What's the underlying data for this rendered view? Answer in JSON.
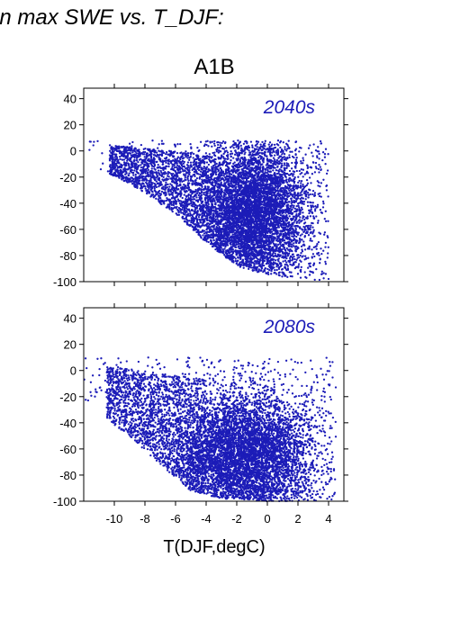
{
  "heading": "in max SWE vs. T_DJF:",
  "scenario": "A1B",
  "xlabel": "T(DJF,degC)",
  "colors": {
    "points": "#1c1cb8",
    "panel_label": "#1c1cb8",
    "axis": "#000000",
    "background": "#ffffff"
  },
  "chart_data": [
    {
      "type": "scatter",
      "title": "2040s",
      "xlim": [
        -12,
        5
      ],
      "ylim": [
        -100,
        48
      ],
      "x_ticks": [
        -10,
        -8,
        -6,
        -4,
        -2,
        0,
        2,
        4
      ],
      "y_ticks": [
        -100,
        -80,
        -60,
        -40,
        -20,
        0,
        20,
        40
      ],
      "x_tick_labels_shown": false,
      "grid": false,
      "series": [
        {
          "color": "#1c1cb8",
          "points_estimated": 8000,
          "x_range": [
            -11.8,
            4
          ],
          "y_range": [
            -100,
            8
          ],
          "density_core_x": [
            -3,
            1
          ],
          "density_core_y": [
            -85,
            -10
          ],
          "cloud_lower_edge": [
            {
              "x": -12,
              "y": -8
            },
            {
              "x": -9,
              "y": -25
            },
            {
              "x": -6,
              "y": -48
            },
            {
              "x": -4,
              "y": -70
            },
            {
              "x": -2,
              "y": -88
            },
            {
              "x": 0,
              "y": -95
            },
            {
              "x": 2,
              "y": -98
            },
            {
              "x": 4,
              "y": -99
            }
          ]
        }
      ]
    },
    {
      "type": "scatter",
      "title": "2080s",
      "xlim": [
        -12,
        5
      ],
      "ylim": [
        -100,
        48
      ],
      "x_ticks": [
        -10,
        -8,
        -6,
        -4,
        -2,
        0,
        2,
        4
      ],
      "y_ticks": [
        -100,
        -80,
        -60,
        -40,
        -20,
        0,
        20,
        40
      ],
      "x_tick_labels_shown": true,
      "grid": false,
      "series": [
        {
          "color": "#1c1cb8",
          "points_estimated": 8000,
          "x_range": [
            -12,
            4.5
          ],
          "y_range": [
            -100,
            10
          ],
          "density_core_x": [
            -4,
            1
          ],
          "density_core_y": [
            -100,
            -35
          ],
          "cloud_lower_edge": [
            {
              "x": -12,
              "y": -25
            },
            {
              "x": -9,
              "y": -50
            },
            {
              "x": -7,
              "y": -72
            },
            {
              "x": -5,
              "y": -92
            },
            {
              "x": -3,
              "y": -98
            },
            {
              "x": 0,
              "y": -100
            },
            {
              "x": 2,
              "y": -100
            },
            {
              "x": 4,
              "y": -100
            }
          ]
        }
      ]
    }
  ]
}
